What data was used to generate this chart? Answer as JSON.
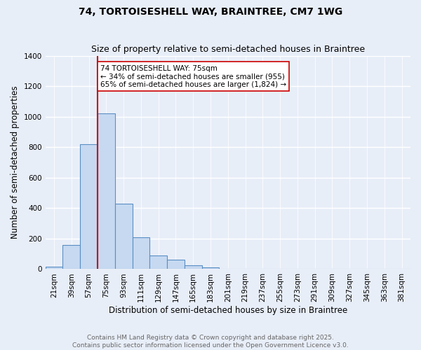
{
  "title_line1": "74, TORTOISESHELL WAY, BRAINTREE, CM7 1WG",
  "title_line2": "Size of property relative to semi-detached houses in Braintree",
  "xlabel": "Distribution of semi-detached houses by size in Braintree",
  "ylabel": "Number of semi-detached properties",
  "categories": [
    "21sqm",
    "39sqm",
    "57sqm",
    "75sqm",
    "93sqm",
    "111sqm",
    "129sqm",
    "147sqm",
    "165sqm",
    "183sqm",
    "201sqm",
    "219sqm",
    "237sqm",
    "255sqm",
    "273sqm",
    "291sqm",
    "309sqm",
    "327sqm",
    "345sqm",
    "363sqm",
    "381sqm"
  ],
  "values": [
    18,
    160,
    820,
    1020,
    430,
    207,
    90,
    60,
    25,
    10,
    0,
    0,
    0,
    0,
    0,
    0,
    0,
    0,
    0,
    0,
    0
  ],
  "bar_color": "#c6d9f1",
  "bar_edge_color": "#5a8fc3",
  "property_bin_index": 3,
  "red_line_label": "74 TORTOISESHELL WAY: 75sqm",
  "smaller_pct": 34,
  "smaller_count": 955,
  "larger_pct": 65,
  "larger_count": 1824,
  "ylim": [
    0,
    1400
  ],
  "yticks": [
    0,
    200,
    400,
    600,
    800,
    1000,
    1200,
    1400
  ],
  "footer_line1": "Contains HM Land Registry data © Crown copyright and database right 2025.",
  "footer_line2": "Contains public sector information licensed under the Open Government Licence v3.0.",
  "background_color": "#e8eef8",
  "grid_color": "#ffffff",
  "annotation_box_color": "#ffffff",
  "annotation_box_edge": "#cc0000",
  "red_line_color": "#cc0000",
  "title_fontsize": 10,
  "subtitle_fontsize": 9,
  "tick_fontsize": 7.5,
  "ylabel_fontsize": 8.5,
  "xlabel_fontsize": 8.5,
  "annotation_fontsize": 7.5,
  "footer_fontsize": 6.5,
  "footer_color": "#666666"
}
